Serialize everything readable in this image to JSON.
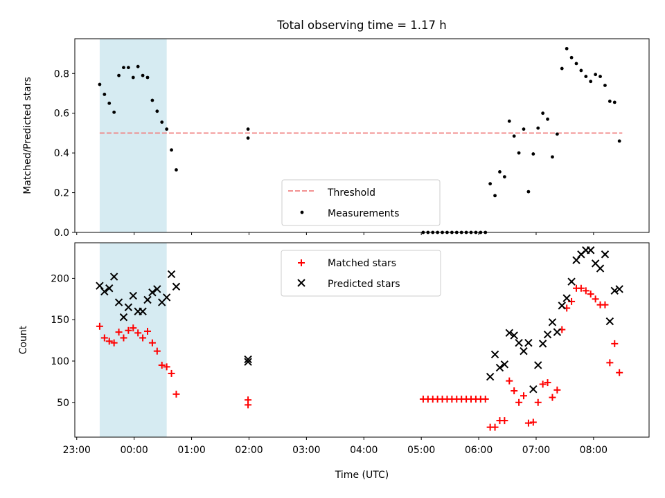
{
  "chart_data": [
    {
      "type": "scatter",
      "title": "Total observing time = 1.17 h",
      "ylabel": "Matched/Predicted stars",
      "xlim": [
        "22:58",
        "08:58"
      ],
      "ylim": [
        0,
        0.975
      ],
      "yticks": [
        "0.0",
        "0.2",
        "0.4",
        "0.6",
        "0.8"
      ],
      "shaded_region": {
        "x_start": "23:24",
        "x_end": "00:34",
        "color": "#add8e6"
      },
      "threshold": {
        "name": "Threshold",
        "y": 0.5,
        "x_start": "23:24",
        "x_end": "08:30",
        "color": "#f08080"
      },
      "legend": {
        "placement": "bottom-center",
        "entries": [
          "Threshold",
          "Measurements"
        ]
      },
      "series": [
        {
          "name": "Measurements",
          "color": "#000000",
          "points": [
            [
              "23:24",
              0.745
            ],
            [
              "23:29",
              0.695
            ],
            [
              "23:34",
              0.65
            ],
            [
              "23:39",
              0.605
            ],
            [
              "23:44",
              0.79
            ],
            [
              "23:49",
              0.83
            ],
            [
              "23:54",
              0.83
            ],
            [
              "23:59",
              0.78
            ],
            [
              "00:04",
              0.835
            ],
            [
              "00:09",
              0.79
            ],
            [
              "00:14",
              0.78
            ],
            [
              "00:19",
              0.665
            ],
            [
              "00:24",
              0.61
            ],
            [
              "00:29",
              0.555
            ],
            [
              "00:34",
              0.52
            ],
            [
              "00:39",
              0.415
            ],
            [
              "00:44",
              0.315
            ],
            [
              "01:59",
              0.52
            ],
            [
              "01:59",
              0.475
            ],
            [
              "05:02",
              0.0
            ],
            [
              "05:07",
              0.0
            ],
            [
              "05:12",
              0.0
            ],
            [
              "05:17",
              0.0
            ],
            [
              "05:22",
              0.0
            ],
            [
              "05:27",
              0.0
            ],
            [
              "05:32",
              0.0
            ],
            [
              "05:37",
              0.0
            ],
            [
              "05:42",
              0.0
            ],
            [
              "05:47",
              0.0
            ],
            [
              "05:52",
              0.0
            ],
            [
              "05:57",
              0.0
            ],
            [
              "06:02",
              0.0
            ],
            [
              "06:07",
              0.0
            ],
            [
              "06:12",
              0.245
            ],
            [
              "06:17",
              0.185
            ],
            [
              "06:22",
              0.305
            ],
            [
              "06:27",
              0.28
            ],
            [
              "06:32",
              0.56
            ],
            [
              "06:37",
              0.485
            ],
            [
              "06:42",
              0.4
            ],
            [
              "06:47",
              0.52
            ],
            [
              "06:52",
              0.205
            ],
            [
              "06:57",
              0.395
            ],
            [
              "07:02",
              0.525
            ],
            [
              "07:07",
              0.6
            ],
            [
              "07:12",
              0.57
            ],
            [
              "07:17",
              0.38
            ],
            [
              "07:22",
              0.495
            ],
            [
              "07:27",
              0.825
            ],
            [
              "07:32",
              0.925
            ],
            [
              "07:37",
              0.88
            ],
            [
              "07:42",
              0.85
            ],
            [
              "07:47",
              0.815
            ],
            [
              "07:52",
              0.785
            ],
            [
              "07:57",
              0.76
            ],
            [
              "08:02",
              0.795
            ],
            [
              "08:07",
              0.785
            ],
            [
              "08:12",
              0.74
            ],
            [
              "08:17",
              0.66
            ],
            [
              "08:22",
              0.655
            ],
            [
              "08:27",
              0.46
            ]
          ]
        }
      ]
    },
    {
      "type": "scatter",
      "xlabel": "Time (UTC)",
      "ylabel": "Count",
      "xlim": [
        "22:58",
        "08:58"
      ],
      "ylim": [
        8,
        243
      ],
      "xticks": [
        "23:00",
        "00:00",
        "01:00",
        "02:00",
        "03:00",
        "04:00",
        "05:00",
        "06:00",
        "07:00",
        "08:00"
      ],
      "yticks": [
        "50",
        "100",
        "150",
        "200"
      ],
      "shaded_region": {
        "x_start": "23:24",
        "x_end": "00:34",
        "color": "#add8e6"
      },
      "legend": {
        "placement": "top-center",
        "entries": [
          "Matched stars",
          "Predicted stars"
        ]
      },
      "series": [
        {
          "name": "Matched stars",
          "marker": "plus",
          "color": "#ff0000",
          "points": [
            [
              "23:24",
              142
            ],
            [
              "23:29",
              128
            ],
            [
              "23:34",
              124
            ],
            [
              "23:39",
              122
            ],
            [
              "23:44",
              135
            ],
            [
              "23:49",
              128
            ],
            [
              "23:54",
              137
            ],
            [
              "23:59",
              140
            ],
            [
              "00:04",
              134
            ],
            [
              "00:09",
              128
            ],
            [
              "00:14",
              136
            ],
            [
              "00:19",
              122
            ],
            [
              "00:24",
              112
            ],
            [
              "00:29",
              95
            ],
            [
              "00:34",
              93
            ],
            [
              "00:39",
              85
            ],
            [
              "00:44",
              60
            ],
            [
              "01:59",
              53
            ],
            [
              "01:59",
              47
            ],
            [
              "05:02",
              54
            ],
            [
              "05:07",
              54
            ],
            [
              "05:12",
              54
            ],
            [
              "05:17",
              54
            ],
            [
              "05:22",
              54
            ],
            [
              "05:27",
              54
            ],
            [
              "05:32",
              54
            ],
            [
              "05:37",
              54
            ],
            [
              "05:42",
              54
            ],
            [
              "05:47",
              54
            ],
            [
              "05:52",
              54
            ],
            [
              "05:57",
              54
            ],
            [
              "06:02",
              54
            ],
            [
              "06:07",
              54
            ],
            [
              "06:12",
              20
            ],
            [
              "06:17",
              20
            ],
            [
              "06:22",
              28
            ],
            [
              "06:27",
              28
            ],
            [
              "06:32",
              76
            ],
            [
              "06:37",
              64
            ],
            [
              "06:42",
              50
            ],
            [
              "06:47",
              58
            ],
            [
              "06:52",
              25
            ],
            [
              "06:57",
              26
            ],
            [
              "07:02",
              50
            ],
            [
              "07:07",
              72
            ],
            [
              "07:12",
              74
            ],
            [
              "07:17",
              56
            ],
            [
              "07:22",
              65
            ],
            [
              "07:27",
              138
            ],
            [
              "07:32",
              164
            ],
            [
              "07:37",
              172
            ],
            [
              "07:42",
              188
            ],
            [
              "07:47",
              188
            ],
            [
              "07:52",
              185
            ],
            [
              "07:57",
              181
            ],
            [
              "08:02",
              175
            ],
            [
              "08:07",
              168
            ],
            [
              "08:12",
              168
            ],
            [
              "08:17",
              98
            ],
            [
              "08:22",
              121
            ],
            [
              "08:27",
              86
            ]
          ]
        },
        {
          "name": "Predicted stars",
          "marker": "x",
          "color": "#000000",
          "points": [
            [
              "23:24",
              191
            ],
            [
              "23:29",
              184
            ],
            [
              "23:34",
              188
            ],
            [
              "23:39",
              202
            ],
            [
              "23:44",
              171
            ],
            [
              "23:49",
              153
            ],
            [
              "23:54",
              165
            ],
            [
              "23:59",
              179
            ],
            [
              "00:04",
              160
            ],
            [
              "00:09",
              160
            ],
            [
              "00:14",
              174
            ],
            [
              "00:19",
              183
            ],
            [
              "00:24",
              187
            ],
            [
              "00:29",
              171
            ],
            [
              "00:34",
              177
            ],
            [
              "00:39",
              205
            ],
            [
              "00:44",
              190
            ],
            [
              "01:59",
              102
            ],
            [
              "01:59",
              99
            ],
            [
              "06:12",
              81
            ],
            [
              "06:17",
              108
            ],
            [
              "06:22",
              92
            ],
            [
              "06:27",
              96
            ],
            [
              "06:32",
              134
            ],
            [
              "06:37",
              131
            ],
            [
              "06:42",
              122
            ],
            [
              "06:47",
              112
            ],
            [
              "06:52",
              122
            ],
            [
              "06:57",
              66
            ],
            [
              "07:02",
              95
            ],
            [
              "07:07",
              121
            ],
            [
              "07:12",
              132
            ],
            [
              "07:17",
              147
            ],
            [
              "07:22",
              135
            ],
            [
              "07:27",
              167
            ],
            [
              "07:32",
              176
            ],
            [
              "07:37",
              196
            ],
            [
              "07:42",
              222
            ],
            [
              "07:47",
              229
            ],
            [
              "07:52",
              234
            ],
            [
              "07:57",
              234
            ],
            [
              "08:02",
              218
            ],
            [
              "08:07",
              212
            ],
            [
              "08:12",
              229
            ],
            [
              "08:17",
              148
            ],
            [
              "08:22",
              185
            ],
            [
              "08:27",
              187
            ]
          ]
        }
      ]
    }
  ]
}
